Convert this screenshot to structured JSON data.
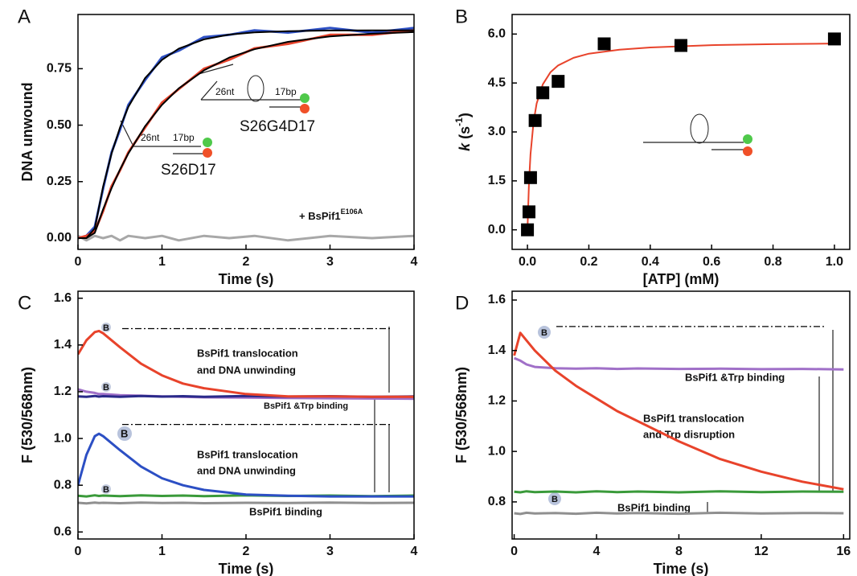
{
  "chart_data": [
    {
      "type": "line",
      "panel": "A",
      "xlabel": "Time (s)",
      "ylabel": "DNA unwound",
      "x": [
        0,
        0.1,
        0.2,
        0.3,
        0.4,
        0.5,
        0.6,
        0.8,
        1.0,
        1.2,
        1.5,
        1.8,
        2.1,
        2.5,
        3,
        3.5,
        4
      ],
      "series": [
        {
          "color": "#a8a8a8",
          "values": [
            0.01,
            -0.01,
            0.01,
            0,
            0.01,
            -0.01,
            0.01,
            0,
            0.01,
            -0.01,
            0.01,
            0,
            0.01,
            -0.01,
            0.01,
            0,
            0.01
          ]
        },
        {
          "color": "#2c4fc4",
          "values": [
            0,
            0.01,
            0.05,
            0.22,
            0.38,
            0.48,
            0.59,
            0.7,
            0.8,
            0.83,
            0.89,
            0.9,
            0.92,
            0.91,
            0.93,
            0.91,
            0.93
          ]
        },
        {
          "color": "#e8432b",
          "values": [
            0,
            0.01,
            0.03,
            0.12,
            0.23,
            0.3,
            0.38,
            0.49,
            0.6,
            0.66,
            0.75,
            0.79,
            0.84,
            0.86,
            0.9,
            0.9,
            0.92
          ]
        },
        {
          "color": "#000000",
          "values": [
            0,
            0,
            0.043,
            0.229,
            0.375,
            0.49,
            0.581,
            0.709,
            0.789,
            0.839,
            0.88,
            0.901,
            0.911,
            0.916,
            0.919,
            0.92,
            0.92
          ]
        },
        {
          "color": "#000000",
          "values": [
            0,
            0,
            0.023,
            0.128,
            0.221,
            0.304,
            0.375,
            0.496,
            0.59,
            0.663,
            0.743,
            0.799,
            0.836,
            0.869,
            0.893,
            0.905,
            0.912
          ]
        }
      ],
      "xlim": [
        0,
        4
      ],
      "ylim": [
        -0.05,
        0.99
      ],
      "xticks": [
        0,
        1,
        2,
        3,
        4
      ],
      "yticks": [
        {
          "value": 0,
          "label": "0.00"
        },
        {
          "value": 0.25,
          "label": "0.25"
        },
        {
          "value": 0.5,
          "label": "0.50"
        },
        {
          "value": 0.75,
          "label": "0.75"
        }
      ],
      "annotations": [
        "26nt",
        "17bp",
        "S26G4D17",
        "26nt",
        "17bp",
        "S26D17",
        "+ BsPif1",
        "E106A"
      ]
    },
    {
      "type": "scatter",
      "panel": "B",
      "xlabel": "[ATP] (mM)",
      "ylabel": [
        "k",
        " (s",
        "-1",
        ")"
      ],
      "series": [
        {
          "color": "#000000",
          "marker": "square",
          "x": [
            0,
            0.005,
            0.01,
            0.025,
            0.05,
            0.1,
            0.25,
            0.5,
            1.0
          ],
          "values": [
            0,
            0.55,
            1.6,
            3.35,
            4.2,
            4.55,
            5.7,
            5.65,
            5.85
          ]
        },
        {
          "color": "#e8432b",
          "x": [
            0,
            0.005,
            0.01,
            0.02,
            0.03,
            0.05,
            0.075,
            0.1,
            0.15,
            0.2,
            0.3,
            0.4,
            0.6,
            0.8,
            1.0
          ],
          "values": [
            0,
            1.45,
            2.32,
            3.31,
            3.87,
            4.46,
            4.83,
            5.04,
            5.27,
            5.4,
            5.52,
            5.59,
            5.66,
            5.69,
            5.71
          ]
        }
      ],
      "xlim": [
        -0.05,
        1.05
      ],
      "ylim": [
        -0.6,
        6.6
      ],
      "xticks": [
        {
          "value": 0,
          "label": "0.0"
        },
        0.2,
        0.4,
        0.6,
        0.8,
        {
          "value": 1,
          "label": "1.0"
        }
      ],
      "yticks": [
        {
          "value": 0,
          "label": "0.0"
        },
        1.5,
        {
          "value": 3,
          "label": "3.0"
        },
        4.5,
        {
          "value": 6,
          "label": "6.0"
        }
      ]
    },
    {
      "type": "line",
      "panel": "C",
      "xlabel": "Time (s)",
      "ylabel": "F (530/568nm)",
      "x": [
        0,
        0.1,
        0.2,
        0.25,
        0.3,
        0.5,
        0.75,
        1,
        1.25,
        1.5,
        2,
        2.5,
        3,
        3.5,
        4
      ],
      "series": [
        {
          "color": "#909090",
          "values": [
            0.725,
            0.722,
            0.726,
            0.724,
            0.725,
            0.723,
            0.726,
            0.724,
            0.725,
            0.723,
            0.725,
            0.724,
            0.726,
            0.724,
            0.725
          ]
        },
        {
          "color": "#3a9a3a",
          "values": [
            0.755,
            0.752,
            0.757,
            0.754,
            0.756,
            0.753,
            0.757,
            0.754,
            0.756,
            0.753,
            0.757,
            0.754,
            0.756,
            0.753,
            0.756
          ]
        },
        {
          "color": "#a070c8",
          "values": [
            1.21,
            1.2,
            1.195,
            1.19,
            1.19,
            1.185,
            1.183,
            1.18,
            1.178,
            1.176,
            1.175,
            1.173,
            1.172,
            1.171,
            1.17
          ]
        },
        {
          "color": "#2a2a8a",
          "values": [
            1.18,
            1.178,
            1.182,
            1.179,
            1.181,
            1.178,
            1.182,
            1.179,
            1.181,
            1.178,
            1.182,
            1.179,
            1.181,
            1.178,
            1.18
          ]
        },
        {
          "color": "#e8432b",
          "values": [
            1.36,
            1.42,
            1.455,
            1.46,
            1.45,
            1.39,
            1.32,
            1.27,
            1.235,
            1.215,
            1.19,
            1.18,
            1.18,
            1.178,
            1.178
          ]
        },
        {
          "color": "#2c4fc4",
          "values": [
            0.8,
            0.93,
            1.01,
            1.02,
            1.01,
            0.95,
            0.88,
            0.83,
            0.8,
            0.78,
            0.76,
            0.755,
            0.752,
            0.752,
            0.752
          ]
        }
      ],
      "reference_lines": [
        1.47,
        1.06
      ],
      "xlim": [
        0,
        4
      ],
      "ylim": [
        0.57,
        1.63
      ],
      "xticks": [
        0,
        1,
        2,
        3,
        4
      ],
      "yticks": [
        0.6,
        0.8,
        {
          "value": 1,
          "label": "1.0"
        },
        1.2,
        1.4,
        1.6
      ],
      "annotations": [
        "BsPif1 translocation",
        "and DNA unwinding",
        "BsPif1 &Trp binding",
        "BsPif1 translocation",
        "and DNA unwinding",
        "BsPif1 binding"
      ],
      "icon_labels": [
        "B",
        "B",
        "B",
        "B"
      ]
    },
    {
      "type": "line",
      "panel": "D",
      "xlabel": "Time (s)",
      "ylabel": "F (530/568nm)",
      "x": [
        0,
        0.3,
        0.6,
        1,
        2,
        3,
        4,
        5,
        6,
        8,
        10,
        12,
        14,
        16
      ],
      "series": [
        {
          "color": "#909090",
          "values": [
            0.755,
            0.752,
            0.757,
            0.754,
            0.756,
            0.753,
            0.757,
            0.754,
            0.756,
            0.753,
            0.757,
            0.754,
            0.756,
            0.755
          ]
        },
        {
          "color": "#3a9a3a",
          "values": [
            0.84,
            0.838,
            0.842,
            0.839,
            0.841,
            0.838,
            0.842,
            0.839,
            0.841,
            0.838,
            0.842,
            0.839,
            0.841,
            0.84
          ]
        },
        {
          "color": "#a070c8",
          "values": [
            1.37,
            1.36,
            1.345,
            1.335,
            1.33,
            1.328,
            1.33,
            1.327,
            1.329,
            1.327,
            1.328,
            1.326,
            1.327,
            1.325
          ]
        },
        {
          "color": "#e8432b",
          "values": [
            1.38,
            1.47,
            1.44,
            1.4,
            1.32,
            1.26,
            1.21,
            1.16,
            1.12,
            1.04,
            0.97,
            0.92,
            0.88,
            0.85
          ]
        }
      ],
      "reference_lines": [
        1.495
      ],
      "xlim": [
        -0.1,
        16.3
      ],
      "ylim": [
        0.653,
        1.635
      ],
      "xticks": [
        0,
        4,
        8,
        12,
        16
      ],
      "yticks": [
        0.8,
        {
          "value": 1,
          "label": "1.0"
        },
        1.2,
        1.4,
        1.6
      ],
      "annotations": [
        "BsPif1 &Trp binding",
        "BsPif1 translocation",
        "and Trp disruption",
        "BsPif1 binding"
      ],
      "icon_labels": [
        "B",
        "B"
      ]
    }
  ]
}
